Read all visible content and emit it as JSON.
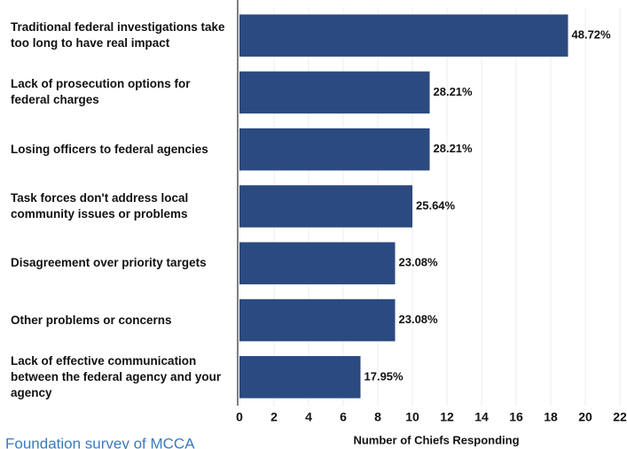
{
  "chart_data": {
    "type": "bar",
    "orientation": "horizontal",
    "categories": [
      "Traditional federal investigations take too long to have real impact",
      "Lack of prosecution options for federal charges",
      "Losing officers to federal agencies",
      "Task forces don't address local community issues or problems",
      "Disagreement over priority targets",
      "Other problems or concerns",
      "Lack of effective communication between the federal agency and your agency"
    ],
    "values": [
      19,
      11,
      11,
      10,
      9,
      9,
      7
    ],
    "value_labels": [
      "48.72%",
      "28.21%",
      "28.21%",
      "25.64%",
      "23.08%",
      "23.08%",
      "17.95%"
    ],
    "color": "#2b4a80",
    "xlim": [
      0,
      22
    ],
    "xticks": [
      0,
      2,
      4,
      6,
      8,
      10,
      12,
      14,
      16,
      18,
      20,
      22
    ],
    "x_label": "Number of Chiefs Responding",
    "grid": true,
    "source": "Foundation survey of MCCA"
  }
}
